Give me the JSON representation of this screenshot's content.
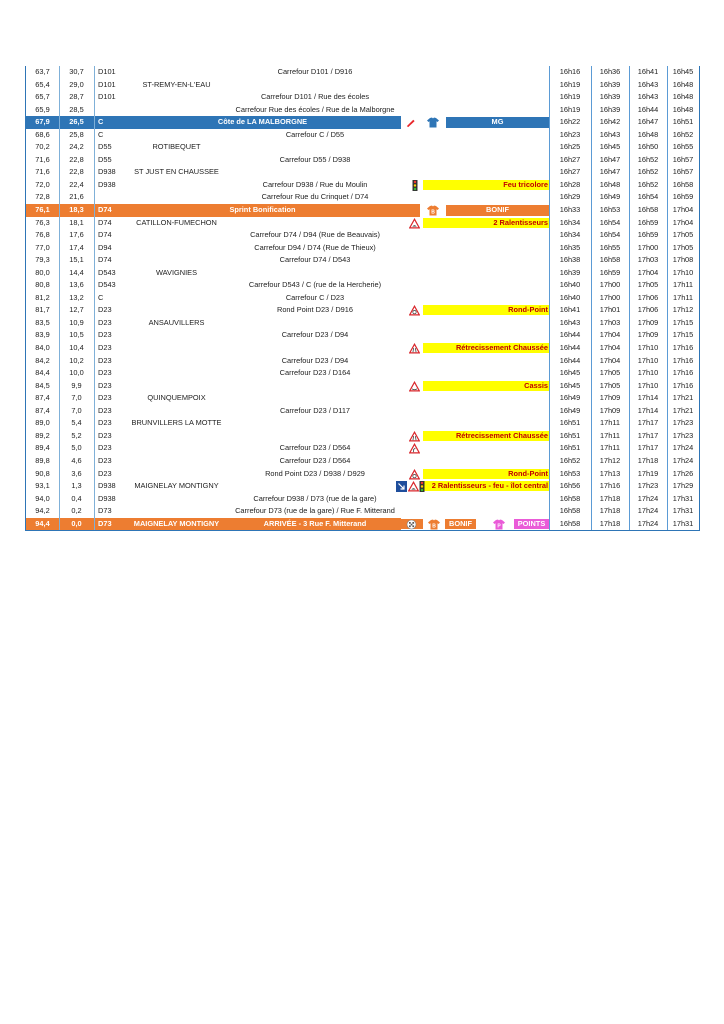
{
  "colors": {
    "blue": "#2e75b6",
    "orange": "#ed7d31",
    "yellow": "#ffff00",
    "pink": "#ea5bd8",
    "remark_text": "#c00000"
  },
  "rows": [
    {
      "km": "63,7",
      "rest": "30,7",
      "road": "D101",
      "loc": "",
      "desc": "Carrefour D101 / D916",
      "icons": [],
      "remark": "",
      "times": [
        "16h16",
        "16h36",
        "16h41",
        "16h45"
      ]
    },
    {
      "km": "65,4",
      "rest": "29,0",
      "road": "D101",
      "loc": "ST-REMY-EN-L'EAU",
      "desc": "",
      "icons": [],
      "remark": "",
      "times": [
        "16h19",
        "16h39",
        "16h43",
        "16h48"
      ]
    },
    {
      "km": "65,7",
      "rest": "28,7",
      "road": "D101",
      "loc": "",
      "desc": "Carrefour D101 / Rue des écoles",
      "icons": [],
      "remark": "",
      "times": [
        "16h19",
        "16h39",
        "16h43",
        "16h48"
      ]
    },
    {
      "km": "65,9",
      "rest": "28,5",
      "road": "",
      "loc": "",
      "desc": "Carrefour Rue des écoles / Rue de la Malborgne",
      "icons": [],
      "remark": "",
      "times": [
        "16h19",
        "16h39",
        "16h44",
        "16h48"
      ]
    },
    {
      "type": "blue",
      "km": "67,9",
      "rest": "26,5",
      "road": "C",
      "title": "Côte de LA MALBORGNE",
      "icons": [
        "climb-icon",
        "mountain-jersey-icon"
      ],
      "box": "MG",
      "times": [
        "16h22",
        "16h42",
        "16h47",
        "16h51"
      ]
    },
    {
      "km": "68,6",
      "rest": "25,8",
      "road": "C",
      "loc": "",
      "desc": "Carrefour C / D55",
      "icons": [],
      "remark": "",
      "times": [
        "16h23",
        "16h43",
        "16h48",
        "16h52"
      ]
    },
    {
      "km": "70,2",
      "rest": "24,2",
      "road": "D55",
      "loc": "ROTIBEQUET",
      "desc": "",
      "icons": [],
      "remark": "",
      "times": [
        "16h25",
        "16h45",
        "16h50",
        "16h55"
      ]
    },
    {
      "km": "71,6",
      "rest": "22,8",
      "road": "D55",
      "loc": "",
      "desc": "Carrefour D55 / D938",
      "icons": [],
      "remark": "",
      "times": [
        "16h27",
        "16h47",
        "16h52",
        "16h57"
      ]
    },
    {
      "km": "71,6",
      "rest": "22,8",
      "road": "D938",
      "loc": "ST JUST EN CHAUSSEE",
      "desc": "",
      "icons": [],
      "remark": "",
      "times": [
        "16h27",
        "16h47",
        "16h52",
        "16h57"
      ]
    },
    {
      "km": "72,0",
      "rest": "22,4",
      "road": "D938",
      "loc": "",
      "desc": "Carrefour D938 / Rue du Moulin",
      "icons": [
        "traffic-light-icon"
      ],
      "remark": "Feu tricolore",
      "times": [
        "16h28",
        "16h48",
        "16h52",
        "16h58"
      ]
    },
    {
      "km": "72,8",
      "rest": "21,6",
      "road": "",
      "loc": "",
      "desc": "Carrefour Rue du Crinquet / D74",
      "icons": [],
      "remark": "",
      "times": [
        "16h29",
        "16h49",
        "16h54",
        "16h59"
      ]
    },
    {
      "type": "orange",
      "km": "76,1",
      "rest": "18,3",
      "road": "D74",
      "title": "Sprint Bonification",
      "icons": [
        "bonus-jersey-icon"
      ],
      "box": "BONIF",
      "times": [
        "16h33",
        "16h53",
        "16h58",
        "17h04"
      ]
    },
    {
      "km": "76,3",
      "rest": "18,1",
      "road": "D74",
      "loc": "CATILLON-FUMECHON",
      "desc": "",
      "icons": [
        "speed-bump-sign-icon"
      ],
      "remark": "2 Ralentisseurs",
      "times": [
        "16h34",
        "16h54",
        "16h59",
        "17h04"
      ]
    },
    {
      "km": "76,8",
      "rest": "17,6",
      "road": "D74",
      "loc": "",
      "desc": "Carrefour D74 / D94 (Rue de Beauvais)",
      "icons": [],
      "remark": "",
      "times": [
        "16h34",
        "16h54",
        "16h59",
        "17h05"
      ]
    },
    {
      "km": "77,0",
      "rest": "17,4",
      "road": "D94",
      "loc": "",
      "desc": "Carrefour D94 / D74 (Rue de Thieux)",
      "icons": [],
      "remark": "",
      "times": [
        "16h35",
        "16h55",
        "17h00",
        "17h05"
      ]
    },
    {
      "km": "79,3",
      "rest": "15,1",
      "road": "D74",
      "loc": "",
      "desc": "Carrefour D74 / D543",
      "icons": [],
      "remark": "",
      "times": [
        "16h38",
        "16h58",
        "17h03",
        "17h08"
      ]
    },
    {
      "km": "80,0",
      "rest": "14,4",
      "road": "D543",
      "loc": "WAVIGNIES",
      "desc": "",
      "icons": [],
      "remark": "",
      "times": [
        "16h39",
        "16h59",
        "17h04",
        "17h10"
      ]
    },
    {
      "km": "80,8",
      "rest": "13,6",
      "road": "D543",
      "loc": "",
      "desc": "Carrefour D543 / C (rue de la Hercherie)",
      "icons": [],
      "remark": "",
      "times": [
        "16h40",
        "17h00",
        "17h05",
        "17h11"
      ]
    },
    {
      "km": "81,2",
      "rest": "13,2",
      "road": "C",
      "loc": "",
      "desc": "Carrefour C / D23",
      "icons": [],
      "remark": "",
      "times": [
        "16h40",
        "17h00",
        "17h06",
        "17h11"
      ]
    },
    {
      "km": "81,7",
      "rest": "12,7",
      "road": "D23",
      "loc": "",
      "desc": "Rond Point D23 / D916",
      "icons": [
        "roundabout-sign-icon"
      ],
      "remark": "Rond-Point",
      "times": [
        "16h41",
        "17h01",
        "17h06",
        "17h12"
      ]
    },
    {
      "km": "83,5",
      "rest": "10,9",
      "road": "D23",
      "loc": "ANSAUVILLERS",
      "desc": "",
      "icons": [],
      "remark": "",
      "times": [
        "16h43",
        "17h03",
        "17h09",
        "17h15"
      ]
    },
    {
      "km": "83,9",
      "rest": "10,5",
      "road": "D23",
      "loc": "",
      "desc": "Carrefour D23 / D94",
      "icons": [],
      "remark": "",
      "times": [
        "16h44",
        "17h04",
        "17h09",
        "17h15"
      ]
    },
    {
      "km": "84,0",
      "rest": "10,4",
      "road": "D23",
      "loc": "",
      "desc": "",
      "icons": [
        "road-narrows-sign-icon"
      ],
      "remark": "Rétrecissement Chaussée",
      "times": [
        "16h44",
        "17h04",
        "17h10",
        "17h16"
      ]
    },
    {
      "km": "84,2",
      "rest": "10,2",
      "road": "D23",
      "loc": "",
      "desc": "Carrefour D23 / D94",
      "icons": [],
      "remark": "",
      "times": [
        "16h44",
        "17h04",
        "17h10",
        "17h16"
      ]
    },
    {
      "km": "84,4",
      "rest": "10,0",
      "road": "D23",
      "loc": "",
      "desc": "Carrefour D23 / D164",
      "icons": [],
      "remark": "",
      "times": [
        "16h45",
        "17h05",
        "17h10",
        "17h16"
      ]
    },
    {
      "km": "84,5",
      "rest": "9,9",
      "road": "D23",
      "loc": "",
      "desc": "",
      "icons": [
        "dip-sign-icon"
      ],
      "remark": "Cassis",
      "times": [
        "16h45",
        "17h05",
        "17h10",
        "17h16"
      ]
    },
    {
      "km": "87,4",
      "rest": "7,0",
      "road": "D23",
      "loc": "QUINQUEMPOIX",
      "desc": "",
      "icons": [],
      "remark": "",
      "times": [
        "16h49",
        "17h09",
        "17h14",
        "17h21"
      ]
    },
    {
      "km": "87,4",
      "rest": "7,0",
      "road": "D23",
      "loc": "",
      "desc": "Carrefour D23 / D117",
      "icons": [],
      "remark": "",
      "times": [
        "16h49",
        "17h09",
        "17h14",
        "17h21"
      ]
    },
    {
      "km": "89,0",
      "rest": "5,4",
      "road": "D23",
      "loc": "BRUNVILLERS LA MOTTE",
      "desc": "",
      "icons": [],
      "remark": "",
      "times": [
        "16h51",
        "17h11",
        "17h17",
        "17h23"
      ]
    },
    {
      "km": "89,2",
      "rest": "5,2",
      "road": "D23",
      "loc": "",
      "desc": "",
      "icons": [
        "road-narrows-sign-icon"
      ],
      "remark": "Rétrecissement Chaussée",
      "times": [
        "16h51",
        "17h11",
        "17h17",
        "17h23"
      ]
    },
    {
      "km": "89,4",
      "rest": "5,0",
      "road": "D23",
      "loc": "",
      "desc": "Carrefour D23 / D564",
      "icons": [
        "dangerous-turn-sign-icon"
      ],
      "remark": "",
      "times": [
        "16h51",
        "17h11",
        "17h17",
        "17h24"
      ]
    },
    {
      "km": "89,8",
      "rest": "4,6",
      "road": "D23",
      "loc": "",
      "desc": "Carrefour D23 / D564",
      "icons": [],
      "remark": "",
      "times": [
        "16h52",
        "17h12",
        "17h18",
        "17h24"
      ]
    },
    {
      "km": "90,8",
      "rest": "3,6",
      "road": "D23",
      "loc": "",
      "desc": "Rond Point  D23 / D938 / D929",
      "icons": [
        "roundabout-sign-icon"
      ],
      "remark": "Rond-Point",
      "times": [
        "16h53",
        "17h13",
        "17h19",
        "17h26"
      ]
    },
    {
      "km": "93,1",
      "rest": "1,3",
      "road": "D938",
      "loc": "MAIGNELAY MONTIGNY",
      "desc": "",
      "icons": [
        "direction-sign-icon",
        "speed-bump-sign-icon",
        "traffic-light-icon"
      ],
      "remark": "2 Ralentisseurs - feu - îlot central",
      "times": [
        "16h56",
        "17h16",
        "17h23",
        "17h29"
      ]
    },
    {
      "km": "94,0",
      "rest": "0,4",
      "road": "D938",
      "loc": "",
      "desc": "Carrefour D938 / D73 (rue de la gare)",
      "icons": [],
      "remark": "",
      "times": [
        "16h58",
        "17h18",
        "17h24",
        "17h31"
      ]
    },
    {
      "km": "94,2",
      "rest": "0,2",
      "road": "D73",
      "loc": "",
      "desc": "Carrefour D73 (rue de la gare) / Rue F. Mitterand",
      "icons": [],
      "remark": "",
      "times": [
        "16h58",
        "17h18",
        "17h24",
        "17h31"
      ]
    },
    {
      "type": "final",
      "km": "94,4",
      "rest": "0,0",
      "road": "D73",
      "loc": "MAIGNELAY MONTIGNY",
      "title": "ARRIVÉE - 3 Rue F. Mitterand",
      "icons": [
        "finish-flag-icon",
        "bonus-jersey-icon",
        "points-jersey-icon"
      ],
      "box": "BONIF",
      "box2": "POINTS",
      "times": [
        "16h58",
        "17h18",
        "17h24",
        "17h31"
      ]
    }
  ]
}
